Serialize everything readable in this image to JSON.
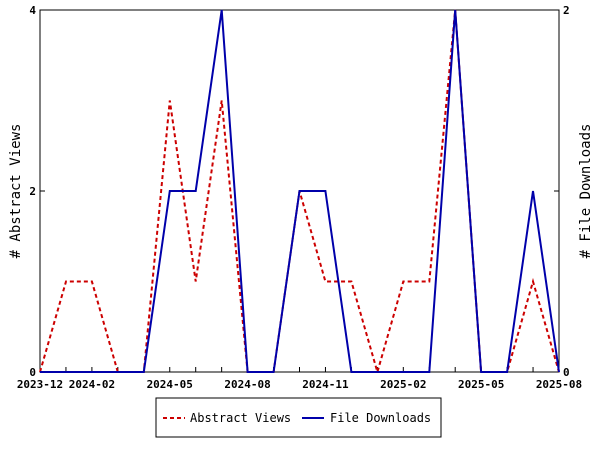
{
  "chart_data": {
    "type": "line",
    "x": [
      "2023-12",
      "2024-01",
      "2024-02",
      "2024-03",
      "2024-04",
      "2024-05",
      "2024-06",
      "2024-07",
      "2024-08",
      "2024-09",
      "2024-10",
      "2024-11",
      "2024-12",
      "2025-01",
      "2025-02",
      "2025-03",
      "2025-04",
      "2025-05",
      "2025-06",
      "2025-07",
      "2025-08"
    ],
    "x_tick_labels": [
      "2023-12",
      "2024-02",
      "2024-05",
      "2024-08",
      "2024-11",
      "2025-02",
      "2025-05",
      "2025-08"
    ],
    "series": [
      {
        "name": "Abstract Views",
        "axis": "left",
        "color": "#cc0000",
        "style": "dashed",
        "values": [
          0,
          1,
          1,
          0,
          0,
          3,
          1,
          3,
          0,
          0,
          2,
          1,
          1,
          0,
          1,
          1,
          4,
          0,
          0,
          1,
          0
        ]
      },
      {
        "name": "File Downloads",
        "axis": "right",
        "color": "#0000aa",
        "style": "solid",
        "values": [
          0,
          0,
          0,
          0,
          0,
          1,
          1,
          2,
          0,
          0,
          1,
          1,
          0,
          0,
          0,
          0,
          2,
          0,
          0,
          1,
          0
        ]
      }
    ],
    "ylabel": "# Abstract Views",
    "y2label": "# File Downloads",
    "ylim": [
      0,
      4
    ],
    "y2lim": [
      0,
      2
    ],
    "y_ticks": [
      "0",
      "2",
      "4"
    ],
    "y2_ticks": [
      "0",
      "1",
      "2"
    ],
    "legend_position": "bottom-center",
    "grid": false
  }
}
